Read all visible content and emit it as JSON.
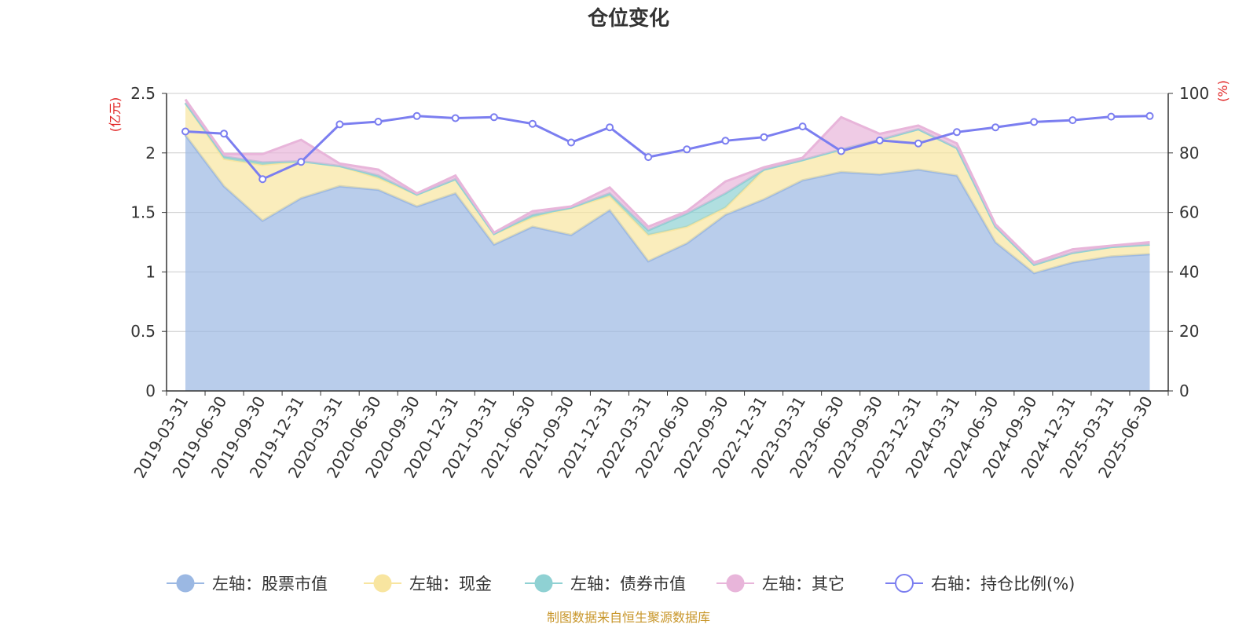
{
  "chart_data": {
    "type": "area",
    "title": "仓位变化",
    "left_axis_unit": "(亿元)",
    "right_axis_unit": "(%)",
    "ylim_left": [
      0,
      2.5
    ],
    "ylim_right": [
      0,
      100
    ],
    "y_ticks_left": [
      "0",
      "0.5",
      "1",
      "1.5",
      "2",
      "2.5"
    ],
    "y_ticks_right": [
      "0",
      "20",
      "40",
      "60",
      "80",
      "100"
    ],
    "categories": [
      "2019-03-31",
      "2019-06-30",
      "2019-09-30",
      "2019-12-31",
      "2020-03-31",
      "2020-06-30",
      "2020-09-30",
      "2020-12-31",
      "2021-03-31",
      "2021-06-30",
      "2021-09-30",
      "2021-12-31",
      "2022-03-31",
      "2022-06-30",
      "2022-09-30",
      "2022-12-31",
      "2023-03-31",
      "2023-06-30",
      "2023-09-30",
      "2023-12-31",
      "2024-03-31",
      "2024-06-30",
      "2024-09-30",
      "2024-12-31",
      "2025-03-31",
      "2025-06-30"
    ],
    "stacked_series": [
      {
        "name": "左轴：股票市值",
        "color": "#9bb8e3",
        "values": [
          2.15,
          1.72,
          1.43,
          1.62,
          1.72,
          1.69,
          1.55,
          1.66,
          1.23,
          1.38,
          1.31,
          1.52,
          1.09,
          1.24,
          1.48,
          1.61,
          1.77,
          1.84,
          1.82,
          1.86,
          1.81,
          1.25,
          0.99,
          1.08,
          1.13,
          1.15
        ]
      },
      {
        "name": "左轴：现金",
        "color": "#f8e5a0",
        "values": [
          0.27,
          0.23,
          0.47,
          0.31,
          0.17,
          0.1,
          0.1,
          0.12,
          0.09,
          0.08,
          0.23,
          0.12,
          0.22,
          0.14,
          0.06,
          0.25,
          0.17,
          0.19,
          0.29,
          0.34,
          0.23,
          0.13,
          0.07,
          0.08,
          0.08,
          0.08
        ]
      },
      {
        "name": "左轴：债券市值",
        "color": "#8fd1d3",
        "values": [
          0,
          0.02,
          0.02,
          0,
          0,
          0.02,
          0,
          0,
          0,
          0.02,
          0,
          0.02,
          0.04,
          0.11,
          0.12,
          0,
          0,
          0,
          0,
          0,
          0,
          0,
          0,
          0,
          0,
          0
        ]
      },
      {
        "name": "左轴：其它",
        "color": "#e8b5da",
        "values": [
          0.03,
          0.02,
          0.07,
          0.18,
          0.02,
          0.05,
          0.01,
          0.03,
          0.01,
          0.03,
          0.01,
          0.05,
          0.03,
          0.02,
          0.1,
          0.02,
          0.02,
          0.27,
          0.05,
          0.03,
          0.04,
          0.02,
          0.02,
          0.03,
          0.01,
          0.02
        ]
      }
    ],
    "line_series": {
      "name": "右轴：持仓比例(%)",
      "color": "#7b7ef0",
      "values": [
        87.2,
        86.5,
        71.2,
        77.0,
        89.6,
        90.5,
        92.4,
        91.7,
        92.0,
        89.8,
        83.5,
        88.6,
        78.6,
        81.2,
        84.1,
        85.3,
        88.9,
        80.6,
        84.2,
        83.2,
        87.0,
        88.6,
        90.4,
        91.0,
        92.2,
        92.4
      ]
    },
    "legend_position": "bottom",
    "grid": true
  },
  "footer": {
    "source_note": "制图数据来自恒生聚源数据库"
  }
}
